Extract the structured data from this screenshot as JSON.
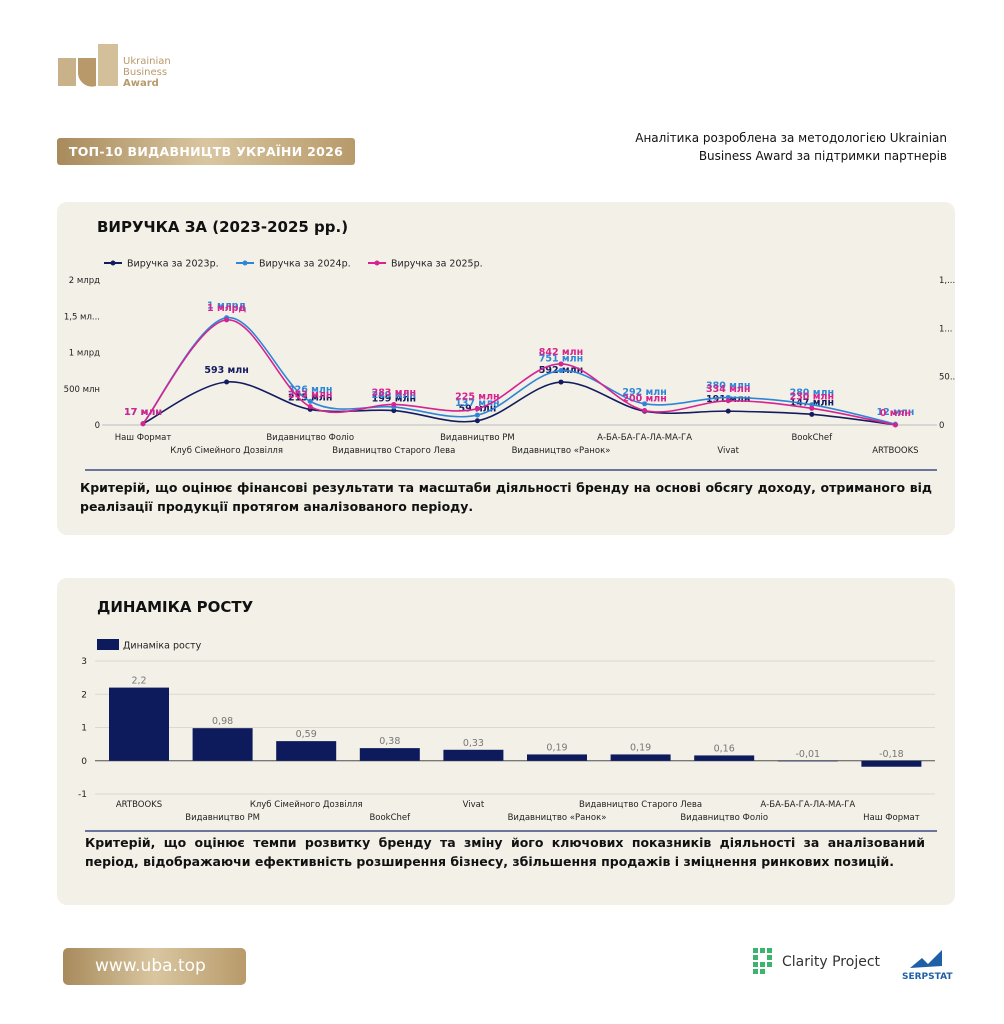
{
  "header": {
    "logo_lines": [
      "Ukrainian",
      "Business",
      "Award"
    ],
    "banner": "ТОП-10 ВИДАВНИЦТВ УКРАЇНИ 2026",
    "note_lines": [
      "Аналітика розроблена за методологією Ukrainian",
      "Business Award за підтримки партнерів"
    ]
  },
  "chart_data": [
    {
      "type": "line",
      "title": "ВИРУЧКА ЗА (2023-2025 рр.)",
      "categories": [
        "Наш Формат",
        "Клуб Сімейного Дозвілля",
        "Видавництво Фоліо",
        "Видавництво Старого Лева",
        "Видавництво РМ",
        "Видавництво «Ранок»",
        "А-БА-БА-ГА-ЛА-МА-ГА",
        "Vivat",
        "BookChef",
        "ARTBOOKS"
      ],
      "series": [
        {
          "name": "Виручка за 2023р.",
          "color": "#141c5e",
          "values": [
            17,
            593,
            215,
            199,
            59,
            592,
            190,
            191,
            147,
            3
          ],
          "value_labels": [
            "17 млн",
            "593 млн",
            "215 млн",
            "199 млн",
            "59 млн",
            "592 млн",
            null,
            "191 млн",
            "147 млн",
            null
          ]
        },
        {
          "name": "Виручка за 2024р.",
          "color": "#2f86d6",
          "values": [
            17,
            1480,
            326,
            249,
            137,
            751,
            292,
            380,
            280,
            12
          ],
          "value_labels": [
            "17 млн",
            "1 млрд",
            "326 млн",
            "249 млн",
            "137 млн",
            "751 млн",
            "292 млн",
            "380 млн",
            "280 млн",
            "12 млн"
          ]
        },
        {
          "name": "Виручка за 2025р.",
          "color": "#d6238f",
          "values": [
            17,
            1450,
            253,
            283,
            225,
            842,
            200,
            334,
            230,
            0
          ],
          "value_labels": [
            "17 млн",
            "1 млрд",
            "253 млн",
            "283 млн",
            "225 млн",
            "842 млн",
            "200 млн",
            "334 млн",
            "230 млн",
            "0 млн"
          ]
        }
      ],
      "ylim": [
        0,
        2000
      ],
      "yticks": [
        0,
        {
          "value": 500,
          "label": "500 млн"
        },
        {
          "value": 1000,
          "label": "1 млрд"
        },
        {
          "value": 1500,
          "label": "1,5 мл..."
        },
        {
          "value": 2000,
          "label": "2 млрд"
        }
      ],
      "y2lim": [
        0,
        1500
      ],
      "y2ticks": [
        0,
        {
          "value": 500,
          "label": "50..."
        },
        {
          "value": 1000,
          "label": "1..."
        },
        {
          "value": 1500,
          "label": "1,..."
        }
      ],
      "grid": false,
      "legend": "top-left",
      "description": "Критерій, що оцінює фінансові результати та масштаби діяльності бренду на основі обсягу доходу, отриманого від реалізації продукції протягом аналізованого періоду."
    },
    {
      "type": "bar",
      "title": "ДИНАМІКА РОСТУ",
      "categories": [
        "ARTBOOKS",
        "Видавництво РМ",
        "Клуб Сімейного Дозвілля",
        "BookChef",
        "Vivat",
        "Видавництво «Ранок»",
        "Видавництво Старого Лева",
        "Видавництво Фоліо",
        "А-БА-БА-ГА-ЛА-МА-ГА",
        "Наш Формат"
      ],
      "series": [
        {
          "name": "Динаміка росту",
          "color": "#0d1a5c",
          "values": [
            2.2,
            0.98,
            0.59,
            0.38,
            0.33,
            0.19,
            0.19,
            0.16,
            -0.01,
            -0.18
          ],
          "value_labels": [
            "2,2",
            "0,98",
            "0,59",
            "0,38",
            "0,33",
            "0,19",
            "0,19",
            "0,16",
            "-0,01",
            "-0,18"
          ]
        }
      ],
      "ylim": [
        -1,
        3
      ],
      "yticks": [
        -1,
        0,
        1,
        2,
        3
      ],
      "grid": true,
      "legend": "top-left",
      "description": "Критерій, що оцінює темпи розвитку бренду та зміну його ключових показників діяльності за аналізований період, відображаючи ефективність розширення бізнесу, збільшення продажів і зміцнення ринкових позицій."
    }
  ],
  "footer": {
    "url": "www.uba.top",
    "partners": [
      "Clarity Project",
      "SERPSTAT"
    ]
  }
}
